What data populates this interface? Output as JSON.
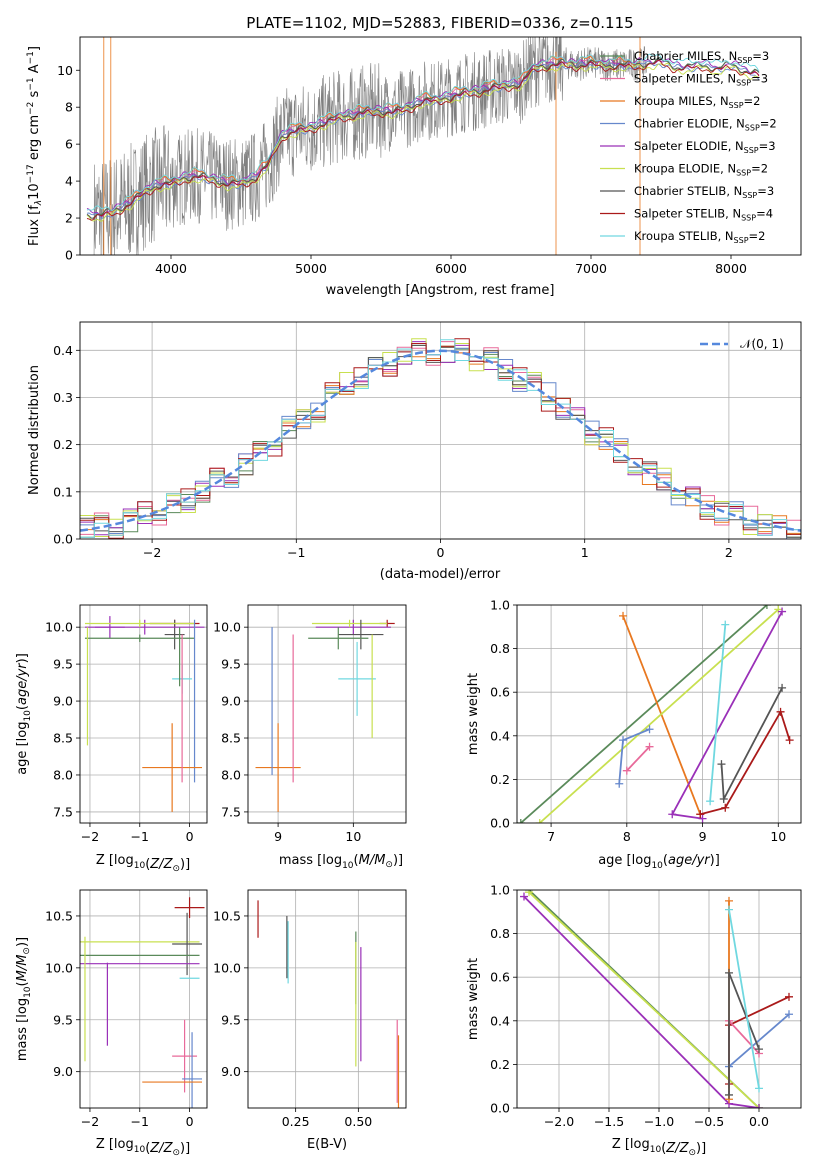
{
  "colors": {
    "chabrier_miles": "#5a8a5a",
    "salpeter_miles": "#e86a9a",
    "kroupa_miles": "#e87820",
    "chabrier_elodie": "#6688cc",
    "salpeter_elodie": "#9a30b8",
    "kroupa_elodie": "#c8e050",
    "chabrier_stelib": "#555555",
    "salpeter_stelib": "#aa1a1a",
    "kroupa_stelib": "#70d8e0",
    "data": "#808080",
    "normal": "#5588dd"
  },
  "chart_data": [
    {
      "id": "spectrum",
      "type": "line",
      "title": "PLATE=1102, MJD=52883, FIBERID=0336, z=0.115",
      "xlabel": "wavelength [Angstrom, rest frame]",
      "ylabel_main": "Flux [f",
      "ylabel_sub1": "λ",
      "ylabel_mid": "10",
      "ylabel_sup1": "−17",
      "ylabel_mid2": " erg cm",
      "ylabel_sup2": "−2",
      "ylabel_mid3": " s",
      "ylabel_sup3": "−1",
      "ylabel_mid4": " A",
      "ylabel_sup4": "−1",
      "ylabel_end": "]",
      "xlim": [
        3350,
        8500
      ],
      "ylim": [
        0,
        11.8
      ],
      "xticks": [
        4000,
        5000,
        6000,
        7000,
        8000
      ],
      "yticks": [
        0,
        2,
        4,
        6,
        8,
        10
      ],
      "legend": [
        {
          "prefix": "Chabrier MILES, N",
          "sub": "SSP",
          "suffix": "=3",
          "color": "#5a8a5a"
        },
        {
          "prefix": "Salpeter MILES, N",
          "sub": "SSP",
          "suffix": "=3",
          "color": "#e86a9a"
        },
        {
          "prefix": "Kroupa MILES, N",
          "sub": "SSP",
          "suffix": "=2",
          "color": "#e87820"
        },
        {
          "prefix": "Chabrier ELODIE, N",
          "sub": "SSP",
          "suffix": "=2",
          "color": "#6688cc"
        },
        {
          "prefix": "Salpeter ELODIE, N",
          "sub": "SSP",
          "suffix": "=3",
          "color": "#9a30b8"
        },
        {
          "prefix": "Kroupa ELODIE, N",
          "sub": "SSP",
          "suffix": "=2",
          "color": "#c8e050"
        },
        {
          "prefix": "Chabrier STELIB, N",
          "sub": "SSP",
          "suffix": "=3",
          "color": "#555555"
        },
        {
          "prefix": "Salpeter STELIB, N",
          "sub": "SSP",
          "suffix": "=4",
          "color": "#aa1a1a"
        },
        {
          "prefix": "Kroupa STELIB, N",
          "sub": "SSP",
          "suffix": "=2",
          "color": "#70d8e0"
        }
      ],
      "continuum": {
        "x": [
          3400,
          3500,
          3600,
          3700,
          3800,
          3900,
          4000,
          4100,
          4200,
          4300,
          4400,
          4500,
          4600,
          4700,
          4750,
          4800,
          4900,
          5000,
          5100,
          5200,
          5300,
          5400,
          5500,
          5600,
          5700,
          5800,
          5900,
          6000,
          6100,
          6200,
          6300,
          6400,
          6500,
          6550,
          6600,
          6700,
          6800,
          6900,
          7000,
          7100,
          7200,
          7300,
          7400,
          7500,
          7600,
          7700,
          7800,
          7900,
          8000,
          8100,
          8200
        ],
        "y": [
          2.2,
          2.2,
          2.4,
          2.8,
          3.4,
          3.8,
          3.9,
          4.2,
          4.3,
          4.1,
          3.9,
          3.9,
          4.2,
          5.0,
          5.9,
          6.5,
          6.8,
          6.9,
          7.2,
          7.5,
          7.6,
          7.8,
          7.8,
          7.8,
          8.0,
          8.4,
          8.4,
          8.6,
          8.8,
          8.9,
          9.1,
          9.2,
          9.3,
          9.8,
          10.2,
          10.3,
          10.4,
          10.3,
          10.4,
          10.3,
          10.3,
          10.3,
          10.4,
          10.5,
          10.2,
          10.2,
          10.3,
          10.1,
          10.3,
          10.0,
          9.8
        ]
      },
      "model_offsets": [
        0.0,
        0.15,
        0.2,
        -0.1,
        0.1,
        -0.2,
        0.0,
        -0.15,
        0.25
      ],
      "data_range": [
        3450,
        7400
      ]
    },
    {
      "id": "residuals",
      "type": "histogram",
      "xlabel": "(data-model)/error",
      "ylabel": "Normed distribution",
      "xlim": [
        -2.5,
        2.5
      ],
      "ylim": [
        0,
        0.46
      ],
      "xticks": [
        -2,
        -1,
        0,
        1,
        2
      ],
      "yticks": [
        0.0,
        0.1,
        0.2,
        0.3,
        0.4
      ],
      "legend": "𝒩(0, 1)",
      "bin_width": 0.1,
      "jitter": [
        [
          0.02,
          -0.03,
          0.01,
          0.03,
          -0.02,
          0.0,
          0.02,
          -0.01,
          0.03,
          -0.02,
          0.01,
          0.02,
          -0.03,
          0.01,
          0.0,
          -0.02,
          0.03,
          -0.01,
          0.02,
          0.0,
          -0.03,
          0.01,
          0.02,
          -0.02,
          0.01,
          0.03,
          -0.01,
          0.0,
          -0.02,
          0.02,
          0.01,
          -0.03,
          0.02,
          0.0,
          -0.01,
          0.03,
          -0.02,
          0.01,
          0.02,
          -0.01,
          0.0,
          0.02,
          -0.03,
          0.01,
          0.02,
          -0.02,
          0.0,
          0.01,
          -0.01,
          0.02
        ]
      ]
    },
    {
      "id": "age-vs-Z",
      "type": "errorbar",
      "xlabel": "Z [log",
      "xlabel_sub": "10",
      "xlabel_rest": "(Z/Z",
      "xlabel_sun": "⊙",
      "xlabel_end": ")]",
      "ylabel": "age  [log",
      "ylabel_sub": "10",
      "ylabel_rest": "(age/yr)]",
      "xlim": [
        -2.2,
        0.35
      ],
      "ylim": [
        7.35,
        10.3
      ],
      "xticks": [
        -2,
        -1,
        0
      ],
      "yticks": [
        7.5,
        8.0,
        8.5,
        9.0,
        9.5,
        10.0
      ],
      "points": [
        {
          "x": -0.3,
          "y": 10.05,
          "xerr": 0.5,
          "yerr": 0.05,
          "c": "#aa1a1a"
        },
        {
          "x": -0.3,
          "y": 9.9,
          "xerr": 0.2,
          "yerr": 0.2,
          "c": "#555555"
        },
        {
          "x": -1.6,
          "y": 10.0,
          "xerr": 0.3,
          "yerr": 0.15,
          "c": "#9a30b8"
        },
        {
          "x": -0.9,
          "y": 10.0,
          "xerr": 1.2,
          "yerr": 0.1,
          "c": "#9a30b8"
        },
        {
          "x": -1.0,
          "y": 10.05,
          "xerr": 1.1,
          "yerr": 0.05,
          "c": "#c8e050"
        },
        {
          "x": -1.0,
          "y": 9.85,
          "xerr": 1.1,
          "yerr": 0.05,
          "c": "#5a8a5a"
        },
        {
          "x": -2.05,
          "y": 9.2,
          "xerr": 0.0,
          "yerr": 0.8,
          "c": "#c8e050"
        },
        {
          "x": -0.15,
          "y": 9.3,
          "xerr": 0.2,
          "yerr": 0.2,
          "c": "#70d8e0"
        },
        {
          "x": -0.2,
          "y": 9.6,
          "xerr": 0.0,
          "yerr": 0.4,
          "c": "#5a8a5a"
        },
        {
          "x": 0.1,
          "y": 9.0,
          "xerr": 0.0,
          "yerr": 1.1,
          "c": "#6688cc"
        },
        {
          "x": -0.35,
          "y": 8.1,
          "xerr": 0.6,
          "yerr": 0.6,
          "c": "#e87820"
        },
        {
          "x": -0.15,
          "y": 8.9,
          "xerr": 0.0,
          "yerr": 1.0,
          "c": "#e86a9a"
        }
      ]
    },
    {
      "id": "age-vs-mass",
      "type": "errorbar",
      "xlabel": "mass [log",
      "xlabel_sub": "10",
      "xlabel_rest": "(M/M",
      "xlabel_sun": "⊙",
      "xlabel_end": ")]",
      "xlim": [
        8.6,
        10.7
      ],
      "ylim": [
        7.35,
        10.3
      ],
      "xticks": [
        9,
        10
      ],
      "yticks": [
        7.5,
        8.0,
        8.5,
        9.0,
        9.5,
        10.0
      ],
      "points": [
        {
          "x": 10.45,
          "y": 10.05,
          "xerr": 0.1,
          "yerr": 0.05,
          "c": "#aa1a1a"
        },
        {
          "x": 10.0,
          "y": 10.0,
          "xerr": 0.5,
          "yerr": 0.1,
          "c": "#9a30b8"
        },
        {
          "x": 9.95,
          "y": 10.05,
          "xerr": 0.5,
          "yerr": 0.05,
          "c": "#c8e050"
        },
        {
          "x": 10.1,
          "y": 9.9,
          "xerr": 0.3,
          "yerr": 0.2,
          "c": "#555555"
        },
        {
          "x": 9.8,
          "y": 9.85,
          "xerr": 0.4,
          "yerr": 0.15,
          "c": "#5a8a5a"
        },
        {
          "x": 10.05,
          "y": 9.3,
          "xerr": 0.25,
          "yerr": 0.5,
          "c": "#70d8e0"
        },
        {
          "x": 10.25,
          "y": 9.2,
          "xerr": 0.0,
          "yerr": 0.7,
          "c": "#c8e050"
        },
        {
          "x": 9.0,
          "y": 8.1,
          "xerr": 0.3,
          "yerr": 0.6,
          "c": "#e87820"
        },
        {
          "x": 9.2,
          "y": 8.9,
          "xerr": 0.0,
          "yerr": 1.0,
          "c": "#e86a9a"
        },
        {
          "x": 8.92,
          "y": 9.0,
          "xerr": 0.0,
          "yerr": 1.0,
          "c": "#6688cc"
        }
      ]
    },
    {
      "id": "massweight-vs-age",
      "type": "line",
      "xlabel": "age  [log",
      "xlabel_sub": "10",
      "xlabel_rest": "(age/yr)]",
      "ylabel": "mass weight",
      "xlim": [
        6.55,
        10.3
      ],
      "ylim": [
        0,
        1.0
      ],
      "xticks": [
        7,
        8,
        9,
        10
      ],
      "yticks": [
        0.0,
        0.2,
        0.4,
        0.6,
        0.8,
        1.0
      ],
      "series": [
        {
          "x": [
            6.6,
            9.85
          ],
          "y": [
            0.0,
            1.0
          ],
          "c": "#5a8a5a"
        },
        {
          "x": [
            7.95,
            8.97
          ],
          "y": [
            0.95,
            0.04
          ],
          "c": "#e87820"
        },
        {
          "x": [
            6.85,
            10.0
          ],
          "y": [
            0.0,
            0.98
          ],
          "c": "#c8e050"
        },
        {
          "x": [
            7.9,
            7.95,
            8.3
          ],
          "y": [
            0.18,
            0.38,
            0.43
          ],
          "c": "#6688cc"
        },
        {
          "x": [
            8.0,
            8.3
          ],
          "y": [
            0.24,
            0.35
          ],
          "c": "#e86a9a"
        },
        {
          "x": [
            9.0,
            8.6,
            10.05
          ],
          "y": [
            0.02,
            0.04,
            0.97
          ],
          "c": "#9a30b8"
        },
        {
          "x": [
            9.25,
            9.28,
            10.05
          ],
          "y": [
            0.27,
            0.11,
            0.62
          ],
          "c": "#555555"
        },
        {
          "x": [
            8.97,
            9.3,
            10.03,
            10.15
          ],
          "y": [
            0.04,
            0.07,
            0.51,
            0.38
          ],
          "c": "#aa1a1a"
        },
        {
          "x": [
            9.1,
            9.3
          ],
          "y": [
            0.1,
            0.91
          ],
          "c": "#70d8e0"
        }
      ]
    },
    {
      "id": "mass-vs-Z",
      "type": "errorbar",
      "xlabel": "Z [log",
      "xlabel_sub": "10",
      "xlabel_rest": "(Z/Z",
      "xlabel_sun": "⊙",
      "xlabel_end": ")]",
      "ylabel": "mass [log",
      "ylabel_sub": "10",
      "ylabel_rest": "(M/M",
      "ylabel_sun": "⊙",
      "ylabel_end": ")]",
      "xlim": [
        -2.2,
        0.35
      ],
      "ylim": [
        8.65,
        10.75
      ],
      "xticks": [
        -2,
        -1,
        0
      ],
      "yticks": [
        9.0,
        9.5,
        10.0,
        10.5
      ],
      "points": [
        {
          "x": 0.0,
          "y": 10.58,
          "xerr": 0.3,
          "yerr": 0.1,
          "c": "#aa1a1a"
        },
        {
          "x": -1.0,
          "y": 10.25,
          "xerr": 1.2,
          "yerr": 0.0,
          "c": "#c8e050"
        },
        {
          "x": -0.05,
          "y": 10.23,
          "xerr": 0.3,
          "yerr": 0.3,
          "c": "#555555"
        },
        {
          "x": -1.0,
          "y": 10.12,
          "xerr": 1.2,
          "yerr": 0.0,
          "c": "#5a8a5a"
        },
        {
          "x": -1.0,
          "y": 10.04,
          "xerr": 1.2,
          "yerr": 0.0,
          "c": "#9a30b8"
        },
        {
          "x": -2.1,
          "y": 9.7,
          "xerr": 0.0,
          "yerr": 0.6,
          "c": "#c8e050"
        },
        {
          "x": -1.65,
          "y": 9.65,
          "xerr": 0.0,
          "yerr": 0.4,
          "c": "#9a30b8"
        },
        {
          "x": 0.0,
          "y": 9.9,
          "xerr": 0.2,
          "yerr": 0.0,
          "c": "#70d8e0"
        },
        {
          "x": -0.1,
          "y": 9.15,
          "xerr": 0.25,
          "yerr": 0.35,
          "c": "#e86a9a"
        },
        {
          "x": 0.05,
          "y": 8.93,
          "xerr": 0.2,
          "yerr": 0.45,
          "c": "#6688cc"
        },
        {
          "x": -0.35,
          "y": 8.9,
          "xerr": 0.6,
          "yerr": 0.0,
          "c": "#e87820"
        }
      ]
    },
    {
      "id": "mass-vs-ebv",
      "type": "errorbar",
      "xlabel": "E(B-V)",
      "xlim": [
        0.06,
        0.69
      ],
      "ylim": [
        8.65,
        10.75
      ],
      "xticks": [
        0.25,
        0.5
      ],
      "xticklabels": [
        "0.25",
        "0.50"
      ],
      "yticks": [
        9.0,
        9.5,
        10.0,
        10.5
      ],
      "points": [
        {
          "x": 0.1,
          "y": 10.47,
          "xerr": 0.0,
          "yerr": 0.18,
          "c": "#aa1a1a"
        },
        {
          "x": 0.215,
          "y": 10.2,
          "xerr": 0.0,
          "yerr": 0.3,
          "c": "#555555"
        },
        {
          "x": 0.22,
          "y": 10.15,
          "xerr": 0.0,
          "yerr": 0.3,
          "c": "#70d8e0"
        },
        {
          "x": 0.49,
          "y": 10.0,
          "xerr": 0.0,
          "yerr": 0.35,
          "c": "#5a8a5a"
        },
        {
          "x": 0.49,
          "y": 9.65,
          "xerr": 0.0,
          "yerr": 0.6,
          "c": "#c8e050"
        },
        {
          "x": 0.51,
          "y": 9.65,
          "xerr": 0.0,
          "yerr": 0.55,
          "c": "#9a30b8"
        },
        {
          "x": 0.655,
          "y": 9.1,
          "xerr": 0.0,
          "yerr": 0.4,
          "c": "#e86a9a"
        },
        {
          "x": 0.66,
          "y": 9.0,
          "xerr": 0.0,
          "yerr": 0.35,
          "c": "#e87820"
        }
      ]
    },
    {
      "id": "massweight-vs-Z",
      "type": "line",
      "xlabel": "Z [log",
      "xlabel_sub": "10",
      "xlabel_rest": "(Z/Z",
      "xlabel_sun": "⊙",
      "xlabel_end": ")]",
      "ylabel": "mass weight",
      "xlim": [
        -2.42,
        0.42
      ],
      "ylim": [
        0,
        1.0
      ],
      "xticks": [
        -2.0,
        -1.5,
        -1.0,
        -0.5,
        0.0
      ],
      "xticklabels": [
        "−2.0",
        "−1.5",
        "−1.0",
        "−0.5",
        "0.0"
      ],
      "yticks": [
        0.0,
        0.2,
        0.4,
        0.6,
        0.8,
        1.0
      ],
      "series": [
        {
          "x": [
            -2.3,
            0.0
          ],
          "y": [
            1.0,
            0.0
          ],
          "c": "#5a8a5a"
        },
        {
          "x": [
            -2.3,
            0.0
          ],
          "y": [
            0.99,
            0.0
          ],
          "c": "#c8e050"
        },
        {
          "x": [
            -2.35,
            -0.3,
            0.0
          ],
          "y": [
            0.97,
            0.02,
            0.0
          ],
          "c": "#9a30b8"
        },
        {
          "x": [
            -0.3,
            -0.3
          ],
          "y": [
            0.04,
            0.95
          ],
          "c": "#e87820"
        },
        {
          "x": [
            -0.3,
            -0.3,
            0.3
          ],
          "y": [
            0.11,
            0.38,
            0.51
          ],
          "c": "#aa1a1a"
        },
        {
          "x": [
            -0.3,
            0.3
          ],
          "y": [
            0.19,
            0.43
          ],
          "c": "#6688cc"
        },
        {
          "x": [
            -0.3,
            0.0
          ],
          "y": [
            0.4,
            0.25
          ],
          "c": "#e86a9a"
        },
        {
          "x": [
            -0.3,
            -0.3,
            0.0
          ],
          "y": [
            0.06,
            0.62,
            0.27
          ],
          "c": "#555555"
        },
        {
          "x": [
            -0.3,
            0.0
          ],
          "y": [
            0.91,
            0.09
          ],
          "c": "#70d8e0"
        }
      ]
    }
  ]
}
